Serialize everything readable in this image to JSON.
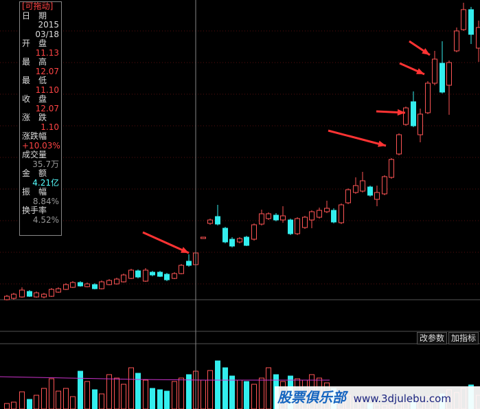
{
  "panel": {
    "tag": "[可拖动]",
    "rows": [
      {
        "label": "日　期",
        "value": "2015"
      },
      {
        "label": "",
        "value": "03/18"
      },
      {
        "label": "开　盘",
        "value": "11.13"
      },
      {
        "label": "最　高",
        "value": "12.07"
      },
      {
        "label": "最　低",
        "value": "11.10"
      },
      {
        "label": "收　盘",
        "value": "12.07"
      },
      {
        "label": "涨　跌",
        "value": "1.10"
      },
      {
        "label": "涨跌幅",
        "value": "+10.03%"
      },
      {
        "label": "成交量",
        "value": "35.7万"
      },
      {
        "label": "金　额",
        "value": "4.21亿"
      },
      {
        "label": "振　幅",
        "value": "8.84%"
      },
      {
        "label": "换手率",
        "value": "4.52%"
      }
    ]
  },
  "buttons": [
    "改参数",
    "加指标"
  ],
  "watermark": {
    "brand": "股票俱乐部",
    "url": "www.3djulebu.com"
  }
}
